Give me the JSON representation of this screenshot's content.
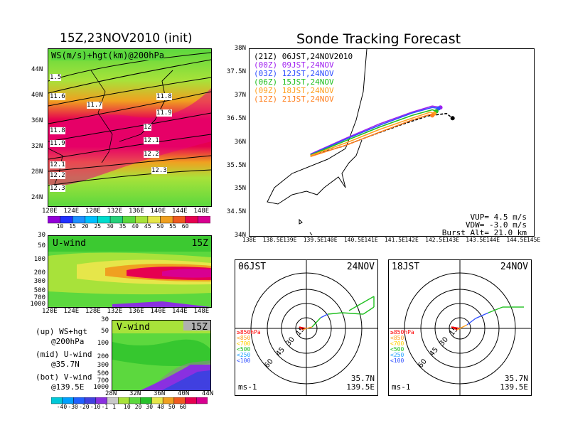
{
  "colors": {
    "ws": [
      "#9300d8",
      "#2030ff",
      "#1e90ff",
      "#00c0ff",
      "#00dccc",
      "#26d07a",
      "#5cd83e",
      "#a8e23a",
      "#e6e64a",
      "#f0a020",
      "#ef5a20",
      "#e60050",
      "#d80090"
    ],
    "uv": [
      "#00c8d8",
      "#00a0ff",
      "#2060ff",
      "#4040e0",
      "#8a30e0",
      "#c8c8c8",
      "#a8e23a",
      "#5cd83e",
      "#26c02a",
      "#e6e64a",
      "#f0a020",
      "#ef5a20",
      "#e60050",
      "#d80090"
    ],
    "tracks": [
      "#000000",
      "#a020f0",
      "#3050ff",
      "#20c020",
      "#ffa020",
      "#ff8020"
    ]
  },
  "map_panel": {
    "title": "15Z,23NOV2010 (init)",
    "label": "WS(m/s)+hgt(km)@200hPa",
    "lat_ticks": [
      "44N",
      "40N",
      "36N",
      "32N",
      "28N",
      "24N"
    ],
    "lon_ticks": [
      "120E",
      "124E",
      "128E",
      "132E",
      "136E",
      "140E",
      "144E",
      "148E"
    ],
    "contour_labels": [
      "1.5",
      "11.6",
      "11.7",
      "11.8",
      "11.8",
      "11.9",
      "11.9",
      "12",
      "12.1",
      "12.1",
      "12.2",
      "12.2",
      "12.3",
      "12.3"
    ],
    "colorbar_ticks": [
      "10",
      "15",
      "20",
      "25",
      "30",
      "35",
      "40",
      "45",
      "50",
      "55",
      "60"
    ]
  },
  "u_panel": {
    "label": "U-wind",
    "time": "15Z",
    "p_ticks": [
      "30",
      "50",
      "100",
      "200",
      "300",
      "500",
      "700",
      "1000"
    ],
    "lon_ticks": [
      "120E",
      "124E",
      "128E",
      "132E",
      "136E",
      "140E",
      "144E",
      "148E"
    ]
  },
  "v_panel": {
    "label": "V-wind",
    "time": "15Z",
    "p_ticks": [
      "30",
      "50",
      "100",
      "200",
      "300",
      "500",
      "700",
      "1000"
    ],
    "lat_ticks": [
      "28N",
      "32N",
      "36N",
      "40N",
      "44N"
    ],
    "colorbar_ticks": [
      "-40",
      "-30",
      "-20",
      "-10",
      "-1",
      "1",
      "10",
      "20",
      "30",
      "40",
      "50",
      "60"
    ]
  },
  "legend_text": {
    "up1": "(up) WS+hgt",
    "up2": "@200hPa",
    "mid1": "(mid) U-wind",
    "mid2": "@35.7N",
    "bot1": "(bot) V-wind",
    "bot2": "@139.5E"
  },
  "tracking": {
    "title": "Sonde Tracking Forecast",
    "launches": [
      {
        "tag": "(21Z)",
        "time": "06JST,24NOV2010"
      },
      {
        "tag": "(00Z)",
        "time": "09JST,24NOV"
      },
      {
        "tag": "(03Z)",
        "time": "12JST,24NOV"
      },
      {
        "tag": "(06Z)",
        "time": "15JST,24NOV"
      },
      {
        "tag": "(09Z)",
        "time": "18JST,24NOV"
      },
      {
        "tag": "(12Z)",
        "time": "21JST,24NOV"
      }
    ],
    "lat_ticks": [
      "38N",
      "37.5N",
      "37N",
      "36.5N",
      "36N",
      "35.5N",
      "35N",
      "34.5N",
      "34N"
    ],
    "lon_ticks": [
      "138E",
      "138.5E",
      "139E",
      "139.5E",
      "140E",
      "140.5E",
      "141E",
      "141.5E",
      "142E",
      "142.5E",
      "143E",
      "143.5E",
      "144E",
      "144.5E",
      "145E"
    ],
    "vup": "VUP= 4.5 m/s",
    "vdw": "VDW= -3.0 m/s",
    "burst": "Burst Alt= 21.0 km"
  },
  "hodographs": [
    {
      "time": "06JST",
      "date": "24NOV",
      "rings": [
        "15",
        "30",
        "45",
        "60"
      ],
      "levels": [
        "≥850hPa",
        "<850",
        "<700",
        "<500",
        "<250",
        "<100"
      ],
      "unit": "ms-1",
      "lat": "35.7N",
      "lon": "139.5E"
    },
    {
      "time": "18JST",
      "date": "24NOV",
      "rings": [
        "15",
        "30",
        "45",
        "60"
      ],
      "levels": [
        "≥850hPa",
        "<850",
        "<700",
        "<500",
        "<250",
        "<100"
      ],
      "unit": "ms-1",
      "lat": "35.7N",
      "lon": "139.5E"
    }
  ],
  "chart_data": [
    {
      "type": "heatmap",
      "title": "15Z,23NOV2010 (init)",
      "label": "WS(m/s)+hgt(km)@200hPa",
      "x_range": [
        120,
        150
      ],
      "y_range": [
        22,
        48
      ],
      "colorbar": [
        10,
        15,
        20,
        25,
        30,
        35,
        40,
        45,
        50,
        55,
        60
      ]
    },
    {
      "type": "heatmap",
      "label": "U-wind",
      "time": "15Z",
      "x_range": [
        120,
        150
      ],
      "pressure_levels": [
        30,
        50,
        100,
        200,
        300,
        500,
        700,
        1000
      ]
    },
    {
      "type": "heatmap",
      "label": "V-wind",
      "time": "15Z",
      "x_range": [
        28,
        44
      ],
      "pressure_levels": [
        30,
        50,
        100,
        200,
        300,
        500,
        700,
        1000
      ],
      "colorbar": [
        -40,
        -30,
        -20,
        -10,
        -1,
        1,
        10,
        20,
        30,
        40,
        50,
        60
      ]
    },
    {
      "type": "line",
      "title": "Sonde Tracking Forecast",
      "xlim": [
        138,
        145
      ],
      "ylim": [
        34,
        38
      ],
      "series": [
        {
          "name": "(21Z) 06JST,24NOV2010",
          "x": [
            139.5,
            140.3,
            141.0,
            141.8,
            142.4,
            142.85,
            143.0
          ],
          "y": [
            35.72,
            35.92,
            36.15,
            36.4,
            36.57,
            36.62,
            36.52
          ]
        },
        {
          "name": "(00Z) 09JST,24NOV",
          "x": [
            139.5,
            140.4,
            141.2,
            142.0,
            142.5,
            142.7
          ],
          "y": [
            35.75,
            36.1,
            36.4,
            36.65,
            36.78,
            36.75
          ]
        },
        {
          "name": "(03Z) 12JST,24NOV",
          "x": [
            139.5,
            140.4,
            141.2,
            142.0,
            142.5,
            142.65
          ],
          "y": [
            35.74,
            36.08,
            36.37,
            36.63,
            36.75,
            36.73
          ]
        },
        {
          "name": "(06Z) 15JST,24NOV",
          "x": [
            139.5,
            140.4,
            141.2,
            142.0,
            142.5,
            142.6
          ],
          "y": [
            35.73,
            36.05,
            36.33,
            36.58,
            36.7,
            36.67
          ]
        },
        {
          "name": "(09Z) 18JST,24NOV",
          "x": [
            139.5,
            140.4,
            141.2,
            142.0,
            142.45,
            142.55
          ],
          "y": [
            35.72,
            36.0,
            36.28,
            36.52,
            36.65,
            36.62
          ]
        },
        {
          "name": "(12Z) 21JST,24NOV",
          "x": [
            139.5,
            140.4,
            141.2,
            142.0,
            142.45,
            142.5
          ],
          "y": [
            35.7,
            35.95,
            36.22,
            36.48,
            36.6,
            36.58
          ]
        }
      ]
    }
  ]
}
